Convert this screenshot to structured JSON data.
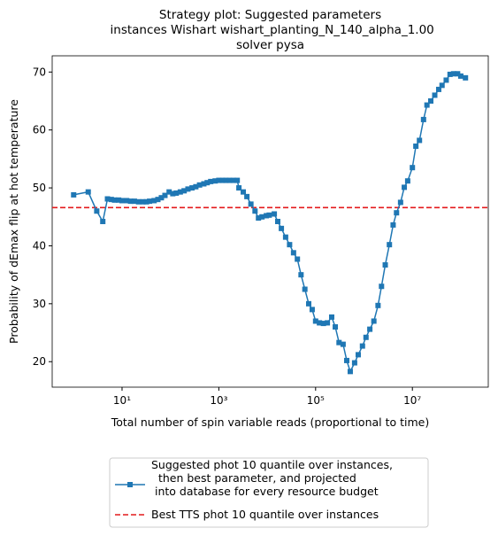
{
  "chart_data": {
    "type": "line",
    "title": "Strategy plot: Suggested parameters\n instances Wishart wishart_planting_N_140_alpha_1.00\nsolver pysa",
    "xlabel": "Total number of spin variable reads (proportional to time)",
    "ylabel": "Probability of dEmax flip at hot temperature",
    "xscale": "log",
    "xlim": [
      0.36,
      370000000
    ],
    "ylim": [
      15.6,
      72.8
    ],
    "xticks": [
      {
        "value": 10,
        "label": "10¹"
      },
      {
        "value": 1000,
        "label": "10³"
      },
      {
        "value": 100000,
        "label": "10⁵"
      },
      {
        "value": 10000000,
        "label": "10⁷"
      }
    ],
    "yticks": [
      20,
      30,
      40,
      50,
      60,
      70
    ],
    "x": [
      1,
      2,
      3,
      4,
      5,
      6,
      7,
      8.5,
      10,
      12.5,
      15,
      18,
      22,
      27,
      32,
      37,
      46,
      55,
      65,
      77,
      94,
      112,
      132,
      160,
      192,
      230,
      280,
      335,
      400,
      490,
      575,
      680,
      840,
      1000,
      1200,
      1400,
      1650,
      2000,
      2400,
      2600,
      3200,
      3800,
      4600,
      5600,
      6600,
      7800,
      9600,
      11000,
      14000,
      16500,
      19600,
      24000,
      29000,
      35000,
      42000,
      50000,
      60000,
      72000,
      85000,
      100000,
      120000,
      145000,
      175000,
      215000,
      255000,
      305000,
      370000,
      440000,
      520000,
      640000,
      760000,
      930000,
      1100000,
      1320000,
      1600000,
      1950000,
      2300000,
      2750000,
      3350000,
      4000000,
      4700000,
      5700000,
      6800000,
      8000000,
      10000000,
      11800000,
      14000000,
      17000000,
      20000000,
      24000000,
      29000000,
      35000000,
      41000000,
      50000000,
      60000000,
      71000000,
      86000000,
      100000000,
      125000000
    ],
    "series": [
      {
        "name": "Suggested phot 10 quantile over instances,\n  then best parameter, and projected\n into database for every resource budget",
        "color": "#1f77b4",
        "marker": "square",
        "values": [
          48.8,
          49.3,
          46.0,
          44.2,
          48.1,
          48.0,
          47.9,
          47.9,
          47.8,
          47.8,
          47.7,
          47.7,
          47.6,
          47.6,
          47.6,
          47.7,
          47.8,
          48.0,
          48.3,
          48.7,
          49.3,
          49.0,
          49.1,
          49.3,
          49.5,
          49.8,
          50.0,
          50.2,
          50.5,
          50.7,
          50.9,
          51.1,
          51.2,
          51.3,
          51.3,
          51.3,
          51.3,
          51.3,
          51.3,
          50.0,
          49.3,
          48.5,
          47.2,
          46.0,
          44.8,
          45.0,
          45.2,
          45.3,
          45.5,
          44.2,
          43.0,
          41.5,
          40.2,
          38.8,
          37.7,
          35.0,
          32.5,
          30.0,
          29.0,
          27.0,
          26.7,
          26.6,
          26.7,
          27.7,
          26.0,
          23.3,
          23.0,
          20.2,
          18.3,
          19.8,
          21.2,
          22.7,
          24.2,
          25.6,
          27.0,
          29.7,
          33.0,
          36.7,
          40.2,
          43.6,
          45.7,
          47.5,
          50.1,
          51.2,
          53.5,
          57.2,
          58.2,
          61.8,
          64.3,
          65.0,
          66.0,
          67.0,
          67.7,
          68.6,
          69.6,
          69.7,
          69.7,
          69.3,
          69.0
        ]
      }
    ],
    "hline": {
      "name": "Best TTS phot 10 quantile over instances",
      "value": 46.6,
      "color": "#e41a1c",
      "style": "dashed"
    },
    "legend": "below"
  }
}
